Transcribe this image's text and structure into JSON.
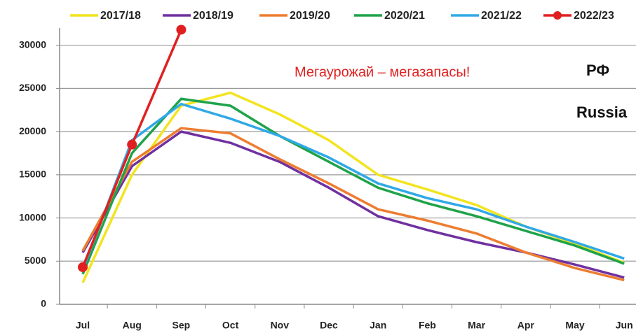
{
  "chart_data": {
    "type": "line",
    "categories": [
      "Jul",
      "Aug",
      "Sep",
      "Oct",
      "Nov",
      "Dec",
      "Jan",
      "Feb",
      "Mar",
      "Apr",
      "May",
      "Jun"
    ],
    "series": [
      {
        "name": "2017/18",
        "color": "#f2e41f",
        "values": [
          2500,
          15000,
          23000,
          24500,
          22000,
          19000,
          15000,
          13300,
          11500,
          9000,
          7000,
          4800
        ]
      },
      {
        "name": "2018/19",
        "color": "#7030a0",
        "values": [
          6000,
          16000,
          20000,
          18700,
          16500,
          13500,
          10200,
          8600,
          7200,
          6000,
          4600,
          3100
        ]
      },
      {
        "name": "2019/20",
        "color": "#ed7d31",
        "values": [
          6200,
          16500,
          20400,
          19800,
          16800,
          14000,
          11000,
          9700,
          8200,
          6000,
          4200,
          2800
        ]
      },
      {
        "name": "2020/21",
        "color": "#1fa34a",
        "values": [
          3500,
          17500,
          23800,
          23000,
          19500,
          16500,
          13500,
          11700,
          10200,
          8500,
          6800,
          4700
        ]
      },
      {
        "name": "2021/22",
        "color": "#30a9e6",
        "values": [
          4000,
          19000,
          23200,
          21500,
          19500,
          17000,
          14000,
          12300,
          11000,
          9000,
          7200,
          5300
        ]
      },
      {
        "name": "2022/23",
        "color": "#e02020",
        "values": [
          4300,
          18500,
          31800,
          null,
          null,
          null,
          null,
          null,
          null,
          null,
          null,
          null
        ],
        "markers": true
      }
    ],
    "ylim": [
      0,
      32000
    ],
    "yticks": [
      0,
      5000,
      10000,
      15000,
      20000,
      25000,
      30000
    ],
    "grid": true,
    "annotations": [
      {
        "text": "Мегаурожай – мегазапасы!",
        "color": "#e02020"
      },
      {
        "text": "РФ",
        "color": "#111111"
      },
      {
        "text": "Russia",
        "color": "#111111"
      }
    ]
  }
}
